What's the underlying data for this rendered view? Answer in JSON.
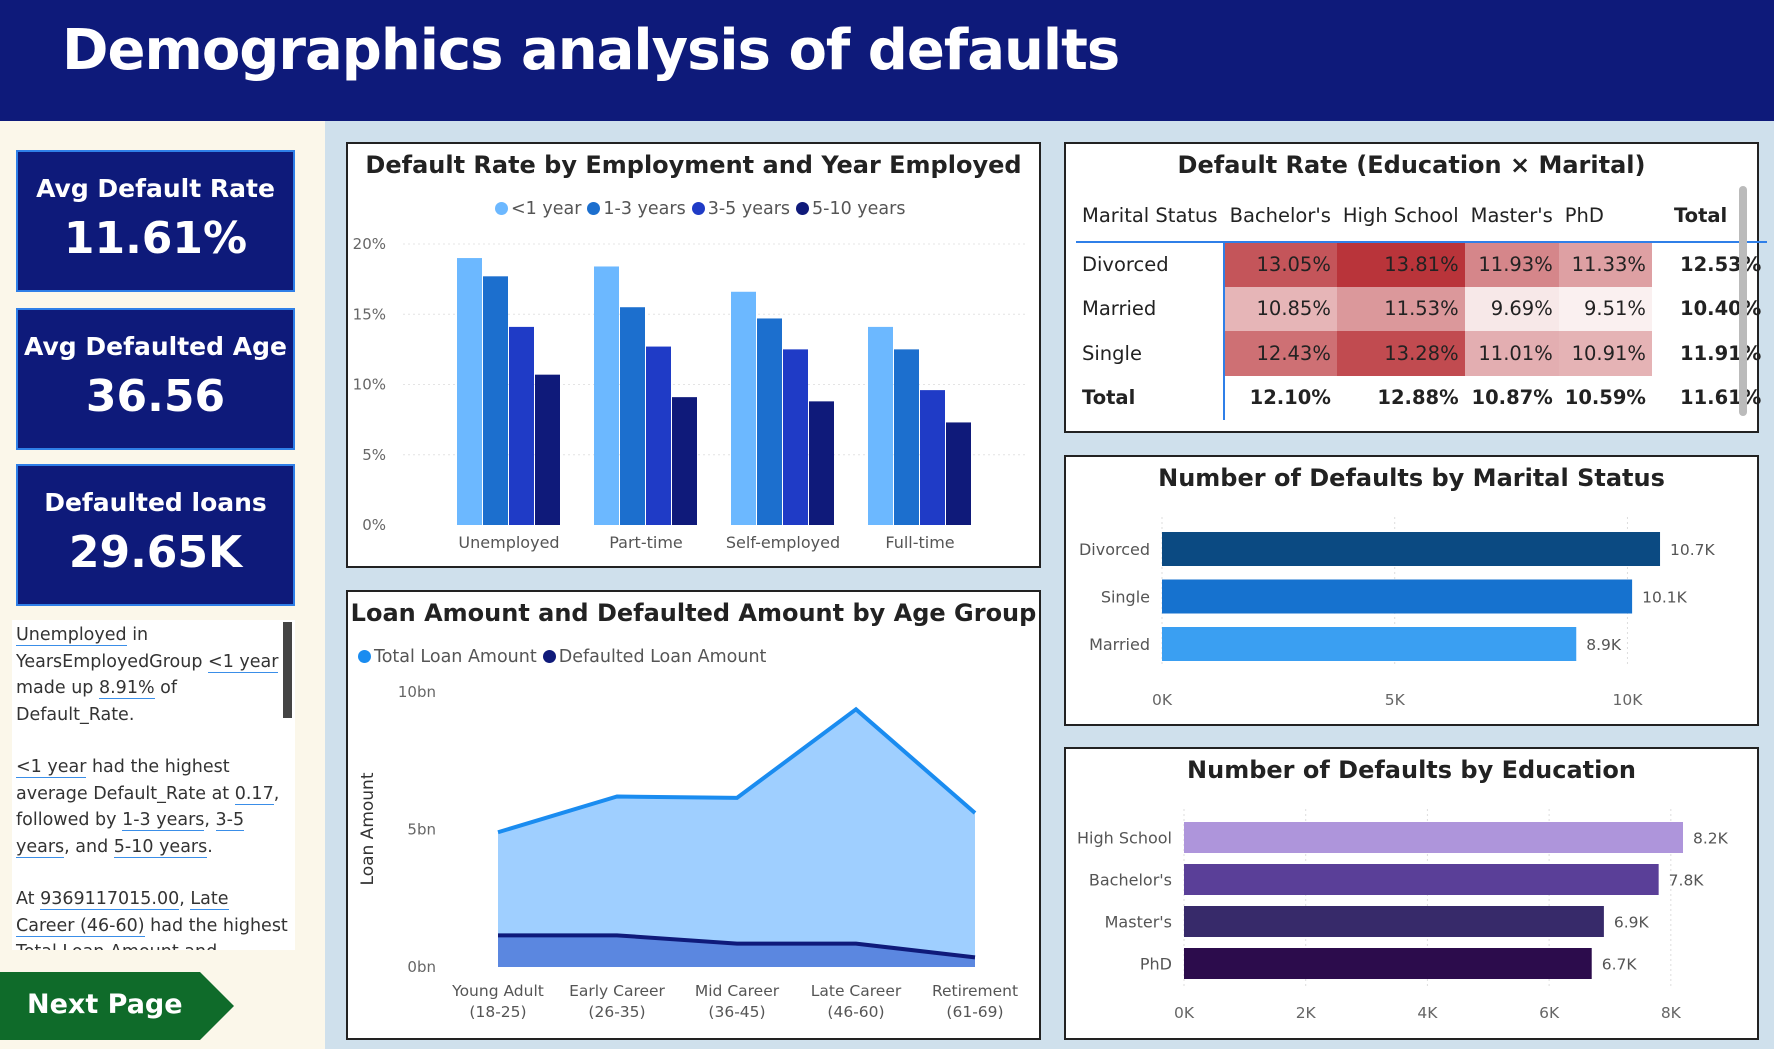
{
  "header": {
    "title": "Demographics analysis of defaults"
  },
  "kpis": [
    {
      "label": "Avg Default Rate",
      "value": "11.61%"
    },
    {
      "label": "Avg Defaulted Age",
      "value": "36.56"
    },
    {
      "label": "Defaulted loans",
      "value": "29.65K"
    }
  ],
  "narrative": {
    "p1": {
      "a": "Unemployed",
      "b": " in ",
      "c": "YearsEmployedGroup",
      "d": " ",
      "e": "<1 year",
      "f": " made up ",
      "g": "8.91%",
      "h": " of Default_Rate."
    },
    "p2": {
      "a": "<1 year",
      "b": " had the highest average Default_Rate at ",
      "c": "0.17",
      "d": ", followed by ",
      "e": "1-3 years",
      "f": ", ",
      "g": "3-5 years",
      "h": ", and ",
      "i": "5-10 years",
      "j": "."
    },
    "p3": {
      "a": "At ",
      "b": "9369117015.00",
      "c": ", ",
      "d": "Late Career (46-60)",
      "e": " had the highest Total Loan Amount and"
    }
  },
  "nav": {
    "next_label": "Next Page"
  },
  "colors": {
    "header": "#0e1a7a",
    "next_button": "#0f6b2a",
    "kpi_border": "#2f7fe8"
  },
  "chart_data": [
    {
      "type": "bar",
      "title": "Default Rate by Employment and Year Employed",
      "categories": [
        "Unemployed",
        "Part-time",
        "Self-employed",
        "Full-time"
      ],
      "series": [
        {
          "name": "<1 year",
          "color": "#6cb8ff",
          "values": [
            0.19,
            0.184,
            0.166,
            0.141
          ]
        },
        {
          "name": "1-3 years",
          "color": "#1c6fce",
          "values": [
            0.177,
            0.155,
            0.147,
            0.125
          ]
        },
        {
          "name": "3-5 years",
          "color": "#1f3bc6",
          "values": [
            0.141,
            0.127,
            0.125,
            0.096
          ]
        },
        {
          "name": "5-10 years",
          "color": "#0f1a7a",
          "values": [
            0.107,
            0.091,
            0.088,
            0.073
          ]
        }
      ],
      "y_ticks": [
        "20%",
        "15%",
        "10%",
        "5%",
        "0%"
      ],
      "ylim": [
        0,
        0.2
      ],
      "legend_position": "top"
    },
    {
      "type": "area",
      "title": "Loan Amount and Defaulted Amount by Age Group",
      "categories": [
        "Young Adult (18-25)",
        "Early Career (26-35)",
        "Mid Career (36-45)",
        "Late Career (46-60)",
        "Retirement (61-69)"
      ],
      "category_lines": [
        [
          "Young Adult",
          "(18-25)"
        ],
        [
          "Early Career",
          "(26-35)"
        ],
        [
          "Mid Career",
          "(36-45)"
        ],
        [
          "Late Career",
          "(46-60)"
        ],
        [
          "Retirement",
          "(61-69)"
        ]
      ],
      "series": [
        {
          "name": "Total Loan Amount",
          "color": "#1a8cf0",
          "values": [
            4.9,
            6.2,
            6.15,
            9.37,
            5.6
          ]
        },
        {
          "name": "Defaulted Loan Amount",
          "color": "#0f1a7a",
          "values": [
            1.15,
            1.15,
            0.85,
            0.85,
            0.35
          ]
        }
      ],
      "y_ticks": [
        "10bn",
        "5bn",
        "0bn"
      ],
      "ylim": [
        0,
        10
      ],
      "ylabel": "Loan Amount",
      "legend_position": "top-left"
    },
    {
      "type": "table",
      "title": "Default Rate (Education × Marital)",
      "columns": [
        "Marital Status",
        "Bachelor's",
        "High School",
        "Master's",
        "PhD",
        "Total"
      ],
      "rows": [
        {
          "label": "Divorced",
          "values": [
            "13.05%",
            "13.81%",
            "11.93%",
            "11.33%",
            "12.53%"
          ],
          "raw": [
            13.05,
            13.81,
            11.93,
            11.33
          ]
        },
        {
          "label": "Married",
          "values": [
            "10.85%",
            "11.53%",
            "9.69%",
            "9.51%",
            "10.40%"
          ],
          "raw": [
            10.85,
            11.53,
            9.69,
            9.51
          ]
        },
        {
          "label": "Single",
          "values": [
            "12.43%",
            "13.28%",
            "11.01%",
            "10.91%",
            "11.91%"
          ],
          "raw": [
            12.43,
            13.28,
            11.01,
            10.91
          ]
        }
      ],
      "total_row": {
        "label": "Total",
        "values": [
          "12.10%",
          "12.88%",
          "10.87%",
          "10.59%",
          "11.61%"
        ]
      }
    },
    {
      "type": "bar",
      "orientation": "horizontal",
      "title": "Number of Defaults by Marital Status",
      "categories": [
        "Divorced",
        "Single",
        "Married"
      ],
      "values": [
        10.7,
        10.1,
        8.9
      ],
      "value_labels": [
        "10.7K",
        "10.1K",
        "8.9K"
      ],
      "colors": [
        "#0b4a82",
        "#1672cf",
        "#3a9ff2"
      ],
      "x_ticks": [
        "0K",
        "5K",
        "10K"
      ],
      "xlim": [
        0,
        11
      ]
    },
    {
      "type": "bar",
      "orientation": "horizontal",
      "title": "Number of Defaults by Education",
      "categories": [
        "High School",
        "Bachelor's",
        "Master's",
        "PhD"
      ],
      "values": [
        8.2,
        7.8,
        6.9,
        6.7
      ],
      "value_labels": [
        "8.2K",
        "7.8K",
        "6.9K",
        "6.7K"
      ],
      "colors": [
        "#ae95db",
        "#5a3f98",
        "#372a6a",
        "#2c0c4c"
      ],
      "x_ticks": [
        "0K",
        "2K",
        "4K",
        "6K",
        "8K"
      ],
      "xlim": [
        0,
        8.2
      ]
    }
  ]
}
